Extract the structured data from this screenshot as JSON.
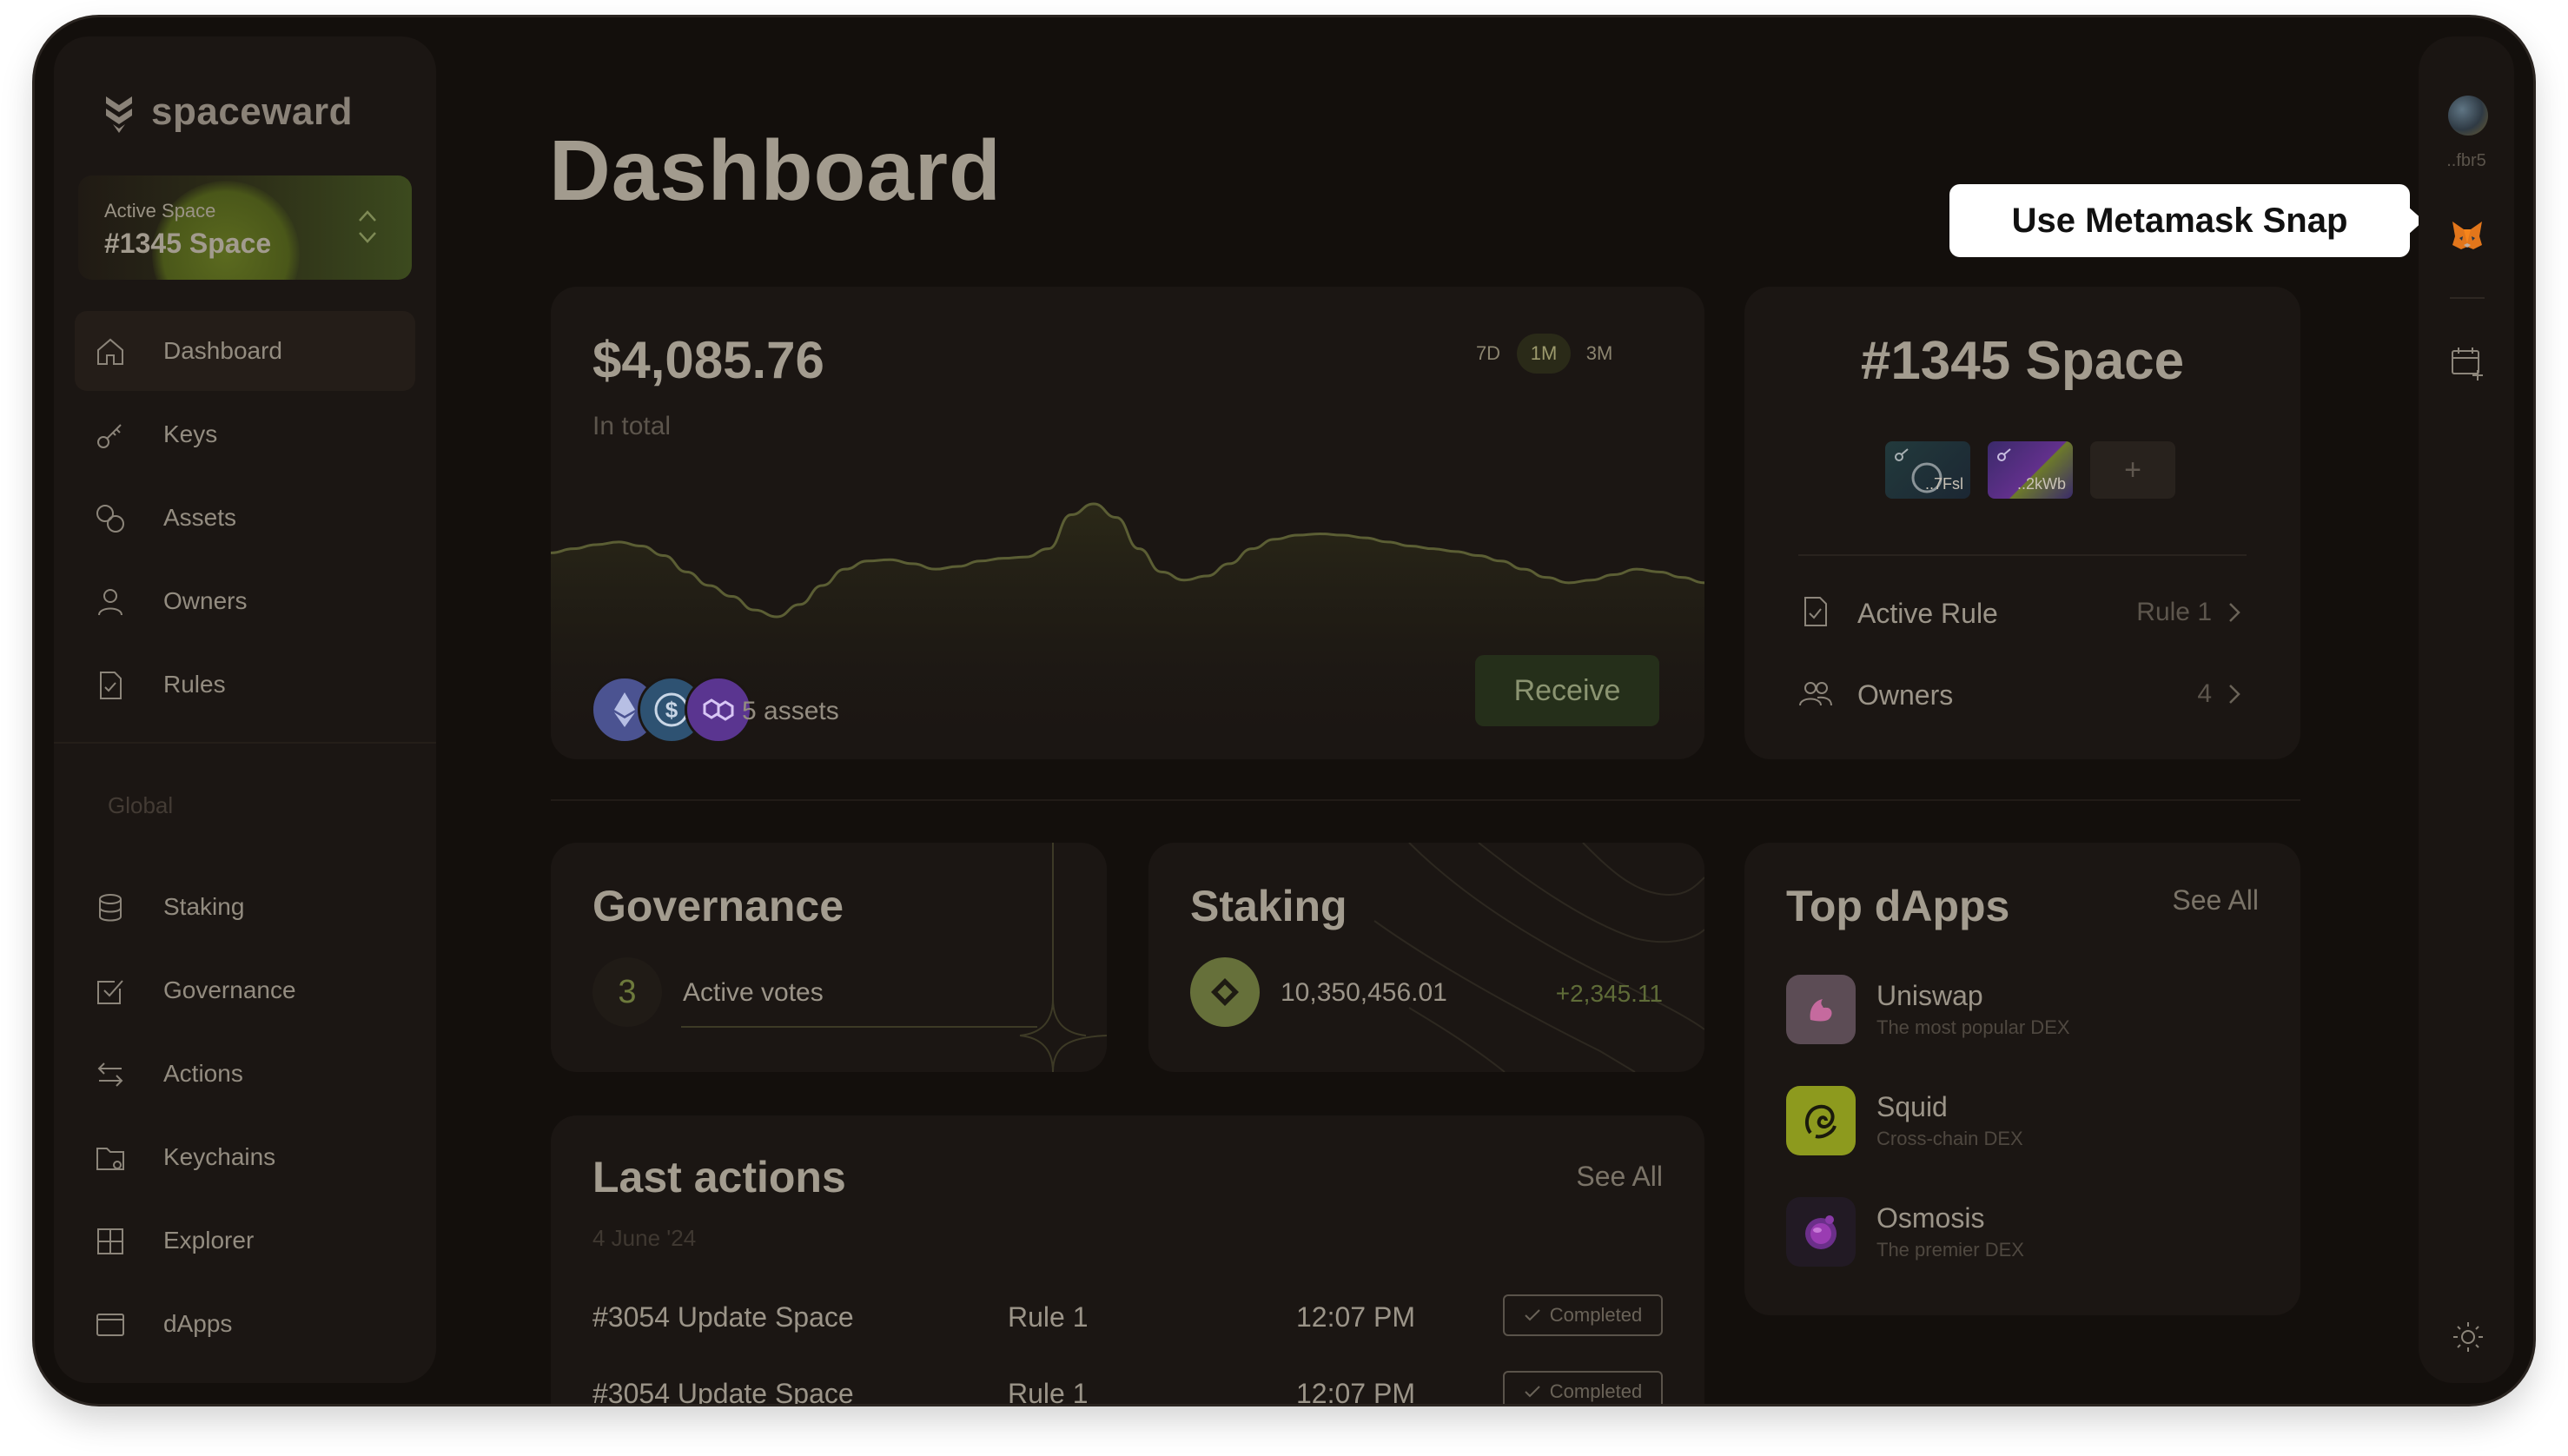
{
  "brand": {
    "name": "spaceward"
  },
  "active_space": {
    "label": "Active Space",
    "value": "#1345 Space"
  },
  "sidebar": {
    "primary": [
      {
        "label": "Dashboard",
        "icon": "home-icon",
        "active": true
      },
      {
        "label": "Keys",
        "icon": "key-icon"
      },
      {
        "label": "Assets",
        "icon": "assets-icon"
      },
      {
        "label": "Owners",
        "icon": "user-icon"
      },
      {
        "label": "Rules",
        "icon": "document-icon"
      }
    ],
    "section_label": "Global",
    "global": [
      {
        "label": "Staking",
        "icon": "database-icon"
      },
      {
        "label": "Governance",
        "icon": "checkbox-icon"
      },
      {
        "label": "Actions",
        "icon": "arrows-icon"
      },
      {
        "label": "Keychains",
        "icon": "folder-icon"
      },
      {
        "label": "Explorer",
        "icon": "grid-icon"
      },
      {
        "label": "dApps",
        "icon": "browser-icon"
      }
    ]
  },
  "page": {
    "title": "Dashboard"
  },
  "tooltip": {
    "text": "Use Metamask Snap"
  },
  "rail": {
    "address": "..fbr5"
  },
  "balance": {
    "amount": "$4,085.76",
    "subtitle": "In total",
    "ranges": [
      "7D",
      "1M",
      "3M"
    ],
    "selected_range": "1M",
    "assets_label": "5 assets",
    "receive_label": "Receive",
    "chart_data": {
      "type": "area",
      "values": [
        52,
        55,
        58,
        60,
        57,
        50,
        38,
        28,
        20,
        10,
        5,
        14,
        28,
        40,
        46,
        47,
        44,
        40,
        42,
        46,
        48,
        49,
        55,
        80,
        88,
        78,
        55,
        38,
        32,
        35,
        44,
        55,
        62,
        65,
        66,
        65,
        63,
        60,
        57,
        55,
        53,
        50,
        46,
        40,
        34,
        30,
        32,
        36,
        40,
        38,
        34,
        30
      ]
    }
  },
  "space": {
    "title": "#1345 Space",
    "keys": [
      {
        "label": "..7Fsl"
      },
      {
        "label": "..2kWb"
      }
    ],
    "add_label": "+",
    "rows": [
      {
        "label": "Active Rule",
        "value": "Rule 1"
      },
      {
        "label": "Owners",
        "value": "4"
      }
    ]
  },
  "governance": {
    "title": "Governance",
    "count": "3",
    "label": "Active votes"
  },
  "staking": {
    "title": "Staking",
    "amount": "10,350,456.01",
    "change": "+2,345.11"
  },
  "dapps": {
    "title": "Top dApps",
    "see_all": "See All",
    "items": [
      {
        "name": "Uniswap",
        "desc": "The most popular DEX"
      },
      {
        "name": "Squid",
        "desc": "Cross-chain DEX"
      },
      {
        "name": "Osmosis",
        "desc": "The premier DEX"
      }
    ]
  },
  "actions": {
    "title": "Last actions",
    "see_all": "See All",
    "date": "4 June '24",
    "rows": [
      {
        "name": "#3054 Update Space",
        "rule": "Rule 1",
        "time": "12:07 PM",
        "status": "Completed"
      },
      {
        "name": "#3054 Update Space",
        "rule": "Rule 1",
        "time": "12:07 PM",
        "status": "Completed"
      }
    ]
  },
  "colors": {
    "background": "#130f0c",
    "card": "#1b1613",
    "accent": "#66703a"
  }
}
